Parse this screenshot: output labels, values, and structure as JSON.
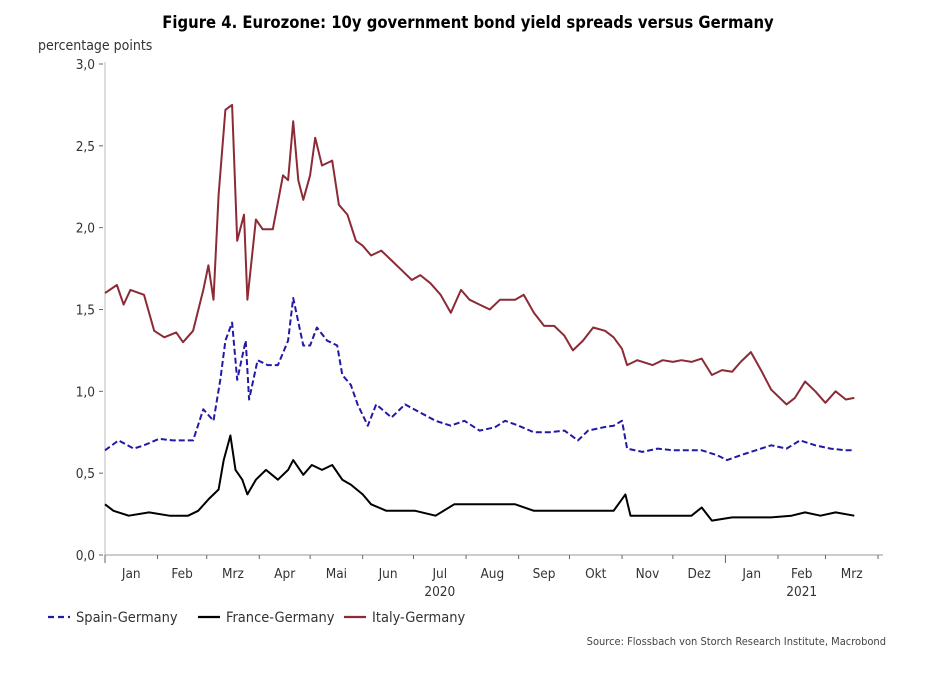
{
  "chart_data": {
    "type": "line",
    "title": "Figure 4. Eurozone: 10y government bond yield spreads versus Germany",
    "ylabel": "percentage points",
    "xlabel": "",
    "ylim": [
      0,
      3.0
    ],
    "yticks": [
      "0,0",
      "0,5",
      "1,0",
      "1,5",
      "2,0",
      "2,5",
      "3,0"
    ],
    "ytick_values": [
      0,
      0.5,
      1,
      1.5,
      2,
      2.5,
      3
    ],
    "xlim": [
      "2020-01-01",
      "2021-04-01"
    ],
    "xtick_labels": [
      "Jan",
      "Feb",
      "Mrz",
      "Apr",
      "Mai",
      "Jun",
      "Jul",
      "Aug",
      "Sep",
      "Okt",
      "Nov",
      "Dez",
      "Jan",
      "Feb",
      "Mrz"
    ],
    "year_labels": [
      {
        "label": "2020",
        "month": "2020-07"
      },
      {
        "label": "2021",
        "month": "2021-02"
      }
    ],
    "grid": false,
    "legend_position": "bottom-left",
    "source": "Source: Flossbach von Storch Research Institute, Macrobond",
    "series": [
      {
        "name": "Spain-Germany",
        "color": "#2219a6",
        "style": "dashed",
        "points": [
          [
            "2020-01-01",
            0.64
          ],
          [
            "2020-01-09",
            0.7
          ],
          [
            "2020-01-18",
            0.65
          ],
          [
            "2020-01-24",
            0.67
          ],
          [
            "2020-02-02",
            0.71
          ],
          [
            "2020-02-10",
            0.7
          ],
          [
            "2020-02-16",
            0.7
          ],
          [
            "2020-02-22",
            0.7
          ],
          [
            "2020-02-28",
            0.89
          ],
          [
            "2020-03-05",
            0.82
          ],
          [
            "2020-03-09",
            1.07
          ],
          [
            "2020-03-12",
            1.31
          ],
          [
            "2020-03-16",
            1.42
          ],
          [
            "2020-03-19",
            1.07
          ],
          [
            "2020-03-24",
            1.31
          ],
          [
            "2020-03-26",
            0.95
          ],
          [
            "2020-03-31",
            1.19
          ],
          [
            "2020-04-06",
            1.16
          ],
          [
            "2020-04-12",
            1.16
          ],
          [
            "2020-04-18",
            1.31
          ],
          [
            "2020-04-21",
            1.57
          ],
          [
            "2020-04-27",
            1.28
          ],
          [
            "2020-05-01",
            1.28
          ],
          [
            "2020-05-05",
            1.39
          ],
          [
            "2020-05-11",
            1.31
          ],
          [
            "2020-05-17",
            1.28
          ],
          [
            "2020-05-20",
            1.1
          ],
          [
            "2020-05-25",
            1.04
          ],
          [
            "2020-05-29",
            0.92
          ],
          [
            "2020-06-04",
            0.79
          ],
          [
            "2020-06-09",
            0.92
          ],
          [
            "2020-06-18",
            0.84
          ],
          [
            "2020-06-26",
            0.92
          ],
          [
            "2020-07-05",
            0.87
          ],
          [
            "2020-07-14",
            0.82
          ],
          [
            "2020-07-23",
            0.79
          ],
          [
            "2020-07-31",
            0.82
          ],
          [
            "2020-08-09",
            0.76
          ],
          [
            "2020-08-18",
            0.78
          ],
          [
            "2020-08-24",
            0.82
          ],
          [
            "2020-09-01",
            0.79
          ],
          [
            "2020-09-10",
            0.75
          ],
          [
            "2020-09-19",
            0.75
          ],
          [
            "2020-09-28",
            0.76
          ],
          [
            "2020-10-06",
            0.7
          ],
          [
            "2020-10-12",
            0.76
          ],
          [
            "2020-10-21",
            0.78
          ],
          [
            "2020-10-27",
            0.79
          ],
          [
            "2020-11-01",
            0.82
          ],
          [
            "2020-11-04",
            0.65
          ],
          [
            "2020-11-13",
            0.63
          ],
          [
            "2020-11-22",
            0.65
          ],
          [
            "2020-12-01",
            0.64
          ],
          [
            "2020-12-09",
            0.64
          ],
          [
            "2020-12-18",
            0.64
          ],
          [
            "2020-12-27",
            0.61
          ],
          [
            "2021-01-02",
            0.58
          ],
          [
            "2021-01-10",
            0.61
          ],
          [
            "2021-01-19",
            0.64
          ],
          [
            "2021-01-28",
            0.67
          ],
          [
            "2021-02-06",
            0.65
          ],
          [
            "2021-02-14",
            0.7
          ],
          [
            "2021-02-23",
            0.67
          ],
          [
            "2021-03-04",
            0.65
          ],
          [
            "2021-03-13",
            0.64
          ],
          [
            "2021-03-18",
            0.64
          ]
        ]
      },
      {
        "name": "France-Germany",
        "color": "#000000",
        "style": "solid",
        "points": [
          [
            "2020-01-01",
            0.31
          ],
          [
            "2020-01-06",
            0.27
          ],
          [
            "2020-01-15",
            0.24
          ],
          [
            "2020-01-27",
            0.26
          ],
          [
            "2020-02-08",
            0.24
          ],
          [
            "2020-02-19",
            0.24
          ],
          [
            "2020-02-25",
            0.27
          ],
          [
            "2020-03-02",
            0.34
          ],
          [
            "2020-03-08",
            0.4
          ],
          [
            "2020-03-11",
            0.58
          ],
          [
            "2020-03-15",
            0.73
          ],
          [
            "2020-03-18",
            0.52
          ],
          [
            "2020-03-22",
            0.46
          ],
          [
            "2020-03-25",
            0.37
          ],
          [
            "2020-03-30",
            0.46
          ],
          [
            "2020-04-05",
            0.52
          ],
          [
            "2020-04-12",
            0.46
          ],
          [
            "2020-04-18",
            0.52
          ],
          [
            "2020-04-21",
            0.58
          ],
          [
            "2020-04-27",
            0.49
          ],
          [
            "2020-05-02",
            0.55
          ],
          [
            "2020-05-08",
            0.52
          ],
          [
            "2020-05-14",
            0.55
          ],
          [
            "2020-05-20",
            0.46
          ],
          [
            "2020-05-25",
            0.43
          ],
          [
            "2020-06-01",
            0.37
          ],
          [
            "2020-06-06",
            0.31
          ],
          [
            "2020-06-15",
            0.27
          ],
          [
            "2020-06-24",
            0.27
          ],
          [
            "2020-07-02",
            0.27
          ],
          [
            "2020-07-14",
            0.24
          ],
          [
            "2020-07-25",
            0.31
          ],
          [
            "2020-08-06",
            0.31
          ],
          [
            "2020-08-18",
            0.31
          ],
          [
            "2020-08-30",
            0.31
          ],
          [
            "2020-09-10",
            0.27
          ],
          [
            "2020-09-22",
            0.27
          ],
          [
            "2020-10-03",
            0.27
          ],
          [
            "2020-10-15",
            0.27
          ],
          [
            "2020-10-27",
            0.27
          ],
          [
            "2020-11-03",
            0.37
          ],
          [
            "2020-11-06",
            0.24
          ],
          [
            "2020-11-19",
            0.24
          ],
          [
            "2020-12-01",
            0.24
          ],
          [
            "2020-12-12",
            0.24
          ],
          [
            "2020-12-18",
            0.29
          ],
          [
            "2020-12-24",
            0.21
          ],
          [
            "2021-01-05",
            0.23
          ],
          [
            "2021-01-16",
            0.23
          ],
          [
            "2021-01-28",
            0.23
          ],
          [
            "2021-02-09",
            0.24
          ],
          [
            "2021-02-17",
            0.26
          ],
          [
            "2021-02-26",
            0.24
          ],
          [
            "2021-03-07",
            0.26
          ],
          [
            "2021-03-18",
            0.24
          ]
        ]
      },
      {
        "name": "Italy-Germany",
        "color": "#8c2b36",
        "style": "solid",
        "points": [
          [
            "2020-01-01",
            1.6
          ],
          [
            "2020-01-08",
            1.65
          ],
          [
            "2020-01-12",
            1.53
          ],
          [
            "2020-01-16",
            1.62
          ],
          [
            "2020-01-24",
            1.59
          ],
          [
            "2020-01-30",
            1.37
          ],
          [
            "2020-02-05",
            1.33
          ],
          [
            "2020-02-12",
            1.36
          ],
          [
            "2020-02-16",
            1.3
          ],
          [
            "2020-02-22",
            1.37
          ],
          [
            "2020-02-28",
            1.62
          ],
          [
            "2020-03-02",
            1.77
          ],
          [
            "2020-03-05",
            1.56
          ],
          [
            "2020-03-08",
            2.2
          ],
          [
            "2020-03-12",
            2.72
          ],
          [
            "2020-03-16",
            2.75
          ],
          [
            "2020-03-19",
            1.92
          ],
          [
            "2020-03-23",
            2.08
          ],
          [
            "2020-03-25",
            1.56
          ],
          [
            "2020-03-30",
            2.05
          ],
          [
            "2020-04-03",
            1.99
          ],
          [
            "2020-04-09",
            1.99
          ],
          [
            "2020-04-15",
            2.32
          ],
          [
            "2020-04-18",
            2.29
          ],
          [
            "2020-04-21",
            2.65
          ],
          [
            "2020-04-24",
            2.29
          ],
          [
            "2020-04-27",
            2.17
          ],
          [
            "2020-05-01",
            2.32
          ],
          [
            "2020-05-04",
            2.55
          ],
          [
            "2020-05-08",
            2.38
          ],
          [
            "2020-05-14",
            2.41
          ],
          [
            "2020-05-18",
            2.14
          ],
          [
            "2020-05-23",
            2.08
          ],
          [
            "2020-05-28",
            1.92
          ],
          [
            "2020-06-01",
            1.89
          ],
          [
            "2020-06-06",
            1.83
          ],
          [
            "2020-06-12",
            1.86
          ],
          [
            "2020-06-18",
            1.8
          ],
          [
            "2020-06-24",
            1.74
          ],
          [
            "2020-06-30",
            1.68
          ],
          [
            "2020-07-05",
            1.71
          ],
          [
            "2020-07-11",
            1.66
          ],
          [
            "2020-07-17",
            1.59
          ],
          [
            "2020-07-23",
            1.48
          ],
          [
            "2020-07-29",
            1.62
          ],
          [
            "2020-08-03",
            1.56
          ],
          [
            "2020-08-09",
            1.53
          ],
          [
            "2020-08-15",
            1.5
          ],
          [
            "2020-08-21",
            1.56
          ],
          [
            "2020-08-30",
            1.56
          ],
          [
            "2020-09-04",
            1.59
          ],
          [
            "2020-09-10",
            1.48
          ],
          [
            "2020-09-16",
            1.4
          ],
          [
            "2020-09-22",
            1.4
          ],
          [
            "2020-09-28",
            1.34
          ],
          [
            "2020-10-03",
            1.25
          ],
          [
            "2020-10-09",
            1.31
          ],
          [
            "2020-10-15",
            1.39
          ],
          [
            "2020-10-22",
            1.37
          ],
          [
            "2020-10-27",
            1.33
          ],
          [
            "2020-11-01",
            1.26
          ],
          [
            "2020-11-04",
            1.16
          ],
          [
            "2020-11-10",
            1.19
          ],
          [
            "2020-11-19",
            1.16
          ],
          [
            "2020-11-25",
            1.19
          ],
          [
            "2020-12-01",
            1.18
          ],
          [
            "2020-12-06",
            1.19
          ],
          [
            "2020-12-12",
            1.18
          ],
          [
            "2020-12-18",
            1.2
          ],
          [
            "2020-12-24",
            1.1
          ],
          [
            "2020-12-30",
            1.13
          ],
          [
            "2021-01-05",
            1.12
          ],
          [
            "2021-01-10",
            1.18
          ],
          [
            "2021-01-16",
            1.24
          ],
          [
            "2021-01-22",
            1.13
          ],
          [
            "2021-01-28",
            1.01
          ],
          [
            "2021-02-06",
            0.92
          ],
          [
            "2021-02-11",
            0.96
          ],
          [
            "2021-02-17",
            1.06
          ],
          [
            "2021-02-23",
            1.0
          ],
          [
            "2021-03-01",
            0.93
          ],
          [
            "2021-03-07",
            1.0
          ],
          [
            "2021-03-13",
            0.95
          ],
          [
            "2021-03-18",
            0.96
          ]
        ]
      }
    ]
  }
}
